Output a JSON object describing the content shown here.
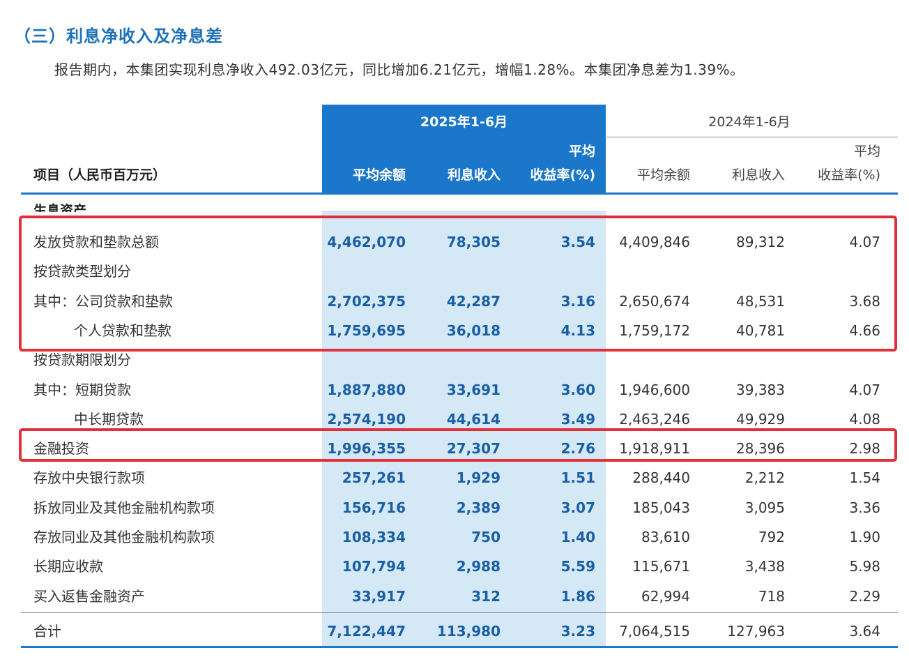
{
  "heading": "（三）利息净收入及净息差",
  "summary": "报告期内，本集团实现利息净收入492.03亿元，同比增加6.21亿元，增幅1.28%。本集团净息差为1.39%。",
  "table": {
    "col_item": "项目（人民币百万元）",
    "period_2025": "2025年1-6月",
    "period_2024": "2024年1-6月",
    "avg_balance": "平均余额",
    "interest_income": "利息收入",
    "yield_line1": "平均",
    "yield_line2": "收益率(%)",
    "section_assets": "生息资产",
    "rows": [
      {
        "label": "发放贷款和垫款总额",
        "v": [
          "4,462,070",
          "78,305",
          "3.54",
          "4,409,846",
          "89,312",
          "4.07"
        ]
      },
      {
        "label": "按贷款类型划分",
        "v": [
          "",
          "",
          "",
          "",
          "",
          ""
        ]
      },
      {
        "label": "其中：公司贷款和垫款",
        "v": [
          "2,702,375",
          "42,287",
          "3.16",
          "2,650,674",
          "48,531",
          "3.68"
        ]
      },
      {
        "label": "个人贷款和垫款",
        "v": [
          "1,759,695",
          "36,018",
          "4.13",
          "1,759,172",
          "40,781",
          "4.66"
        ]
      },
      {
        "label": "按贷款期限划分",
        "v": [
          "",
          "",
          "",
          "",
          "",
          ""
        ]
      },
      {
        "label": "其中：短期贷款",
        "v": [
          "1,887,880",
          "33,691",
          "3.60",
          "1,946,600",
          "39,383",
          "4.07"
        ]
      },
      {
        "label": "中长期贷款",
        "v": [
          "2,574,190",
          "44,614",
          "3.49",
          "2,463,246",
          "49,929",
          "4.08"
        ]
      },
      {
        "label": "金融投资",
        "v": [
          "1,996,355",
          "27,307",
          "2.76",
          "1,918,911",
          "28,396",
          "2.98"
        ]
      },
      {
        "label": "存放中央银行款项",
        "v": [
          "257,261",
          "1,929",
          "1.51",
          "288,440",
          "2,212",
          "1.54"
        ]
      },
      {
        "label": "拆放同业及其他金融机构款项",
        "v": [
          "156,716",
          "2,389",
          "3.07",
          "185,043",
          "3,095",
          "3.36"
        ]
      },
      {
        "label": "存放同业及其他金融机构款项",
        "v": [
          "108,334",
          "750",
          "1.40",
          "83,610",
          "792",
          "1.90"
        ]
      },
      {
        "label": "长期应收款",
        "v": [
          "107,794",
          "2,988",
          "5.59",
          "115,671",
          "3,438",
          "5.98"
        ]
      },
      {
        "label": "买入返售金融资产",
        "v": [
          "33,917",
          "312",
          "1.86",
          "62,994",
          "718",
          "2.29"
        ]
      }
    ],
    "total": {
      "label": "合计",
      "v": [
        "7,122,447",
        "113,980",
        "3.23",
        "7,064,515",
        "127,963",
        "3.64"
      ]
    }
  },
  "colors": {
    "accent": "#1a77c9",
    "highlight_col": "#d5e8f6",
    "annotation": "#e0303a",
    "heading": "#1c71b8"
  }
}
